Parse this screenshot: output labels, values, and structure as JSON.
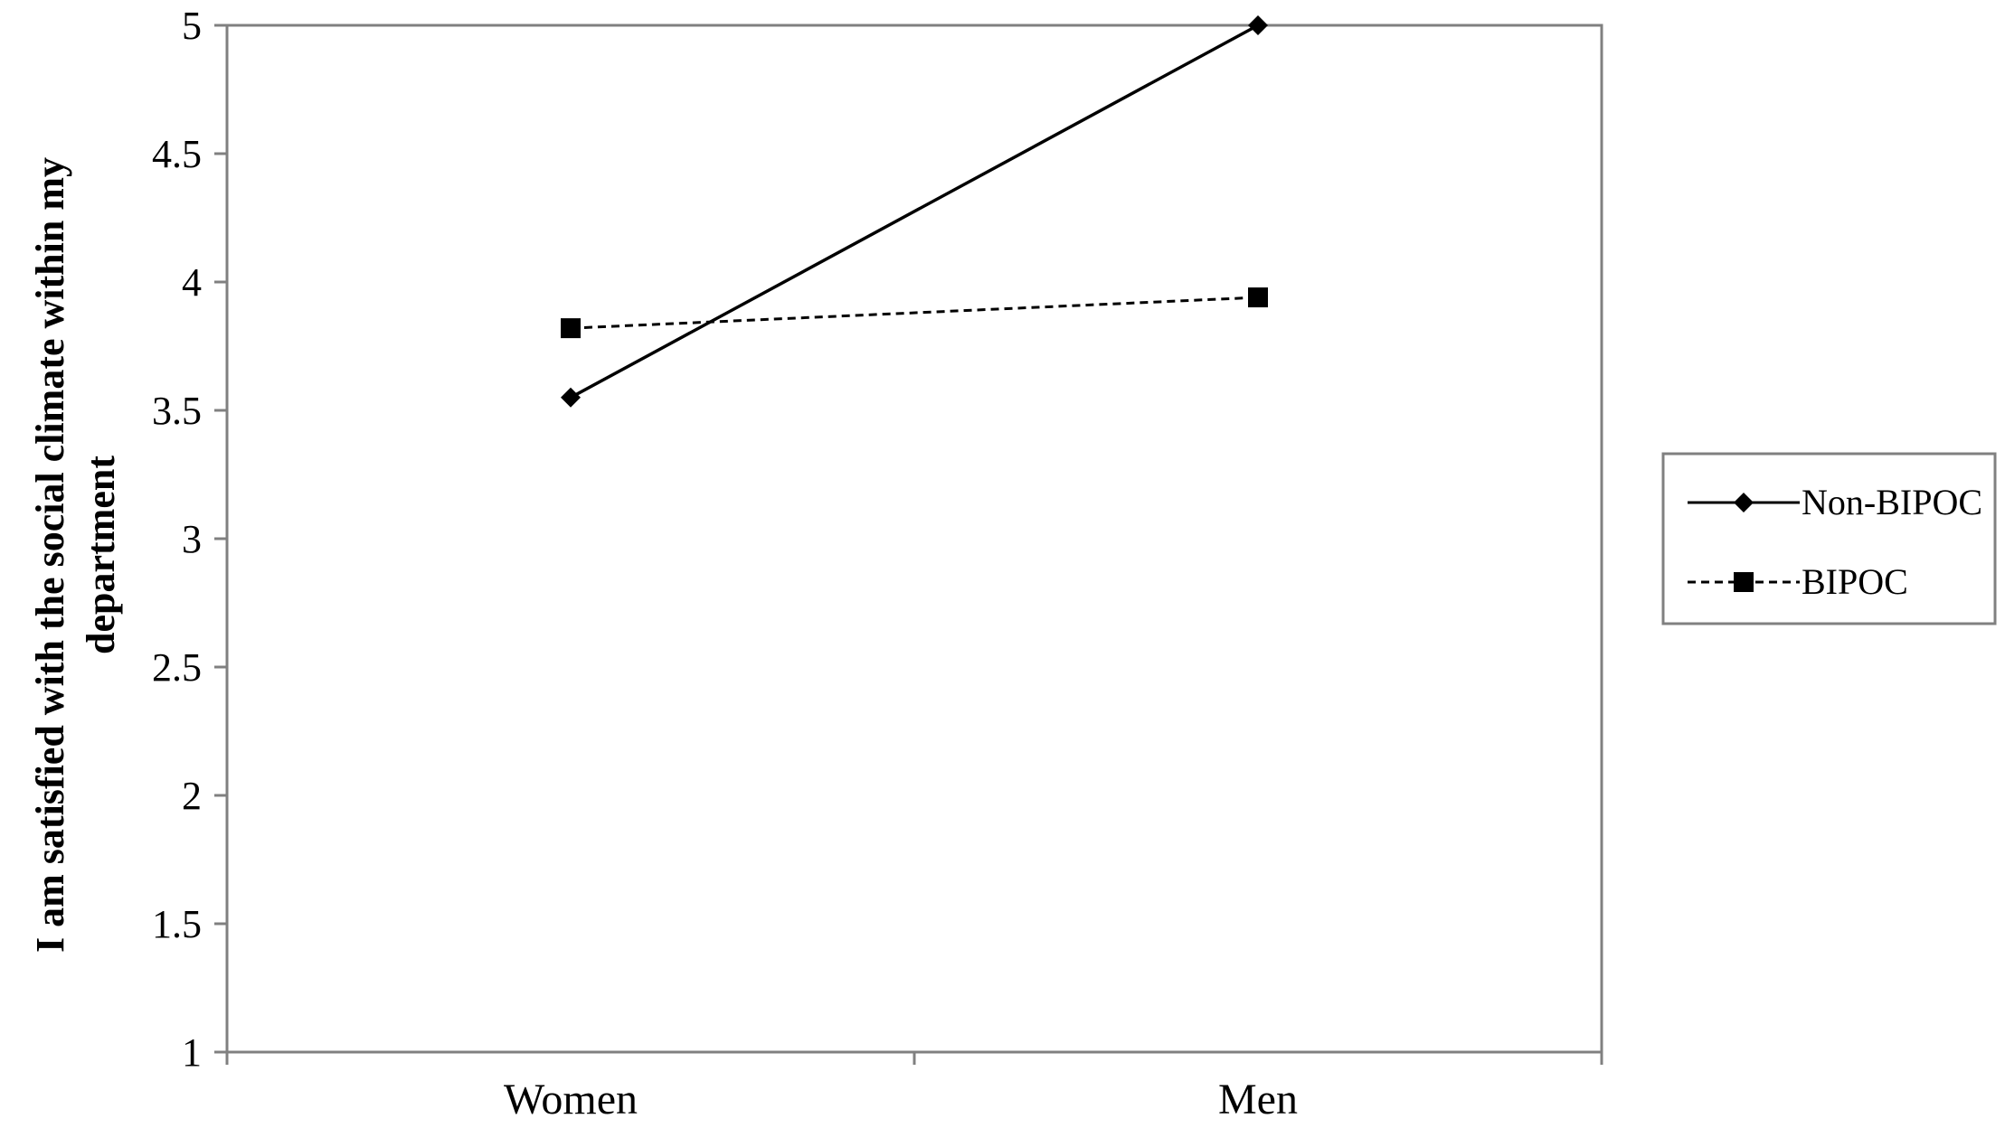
{
  "chart_data": {
    "type": "line",
    "categories": [
      "Women",
      "Men"
    ],
    "ylabel": "I am satisfied with the social climate within my department",
    "ylabel_lines": [
      "I am satisfied with the social climate within my",
      "department"
    ],
    "ylim": [
      1,
      5
    ],
    "yticks": [
      1,
      1.5,
      2,
      2.5,
      3,
      3.5,
      4,
      4.5,
      5
    ],
    "ytick_labels": [
      "1",
      "1.5",
      "2",
      "2.5",
      "3",
      "3.5",
      "4",
      "4.5",
      "5"
    ],
    "grid": false,
    "legend_position": "right",
    "series": [
      {
        "name": "Non-BIPOC",
        "values": [
          3.55,
          5.0
        ],
        "marker": "diamond",
        "line": "solid",
        "color": "#000000"
      },
      {
        "name": "BIPOC",
        "values": [
          3.82,
          3.94
        ],
        "marker": "square",
        "line": "dashed",
        "color": "#000000"
      }
    ]
  }
}
